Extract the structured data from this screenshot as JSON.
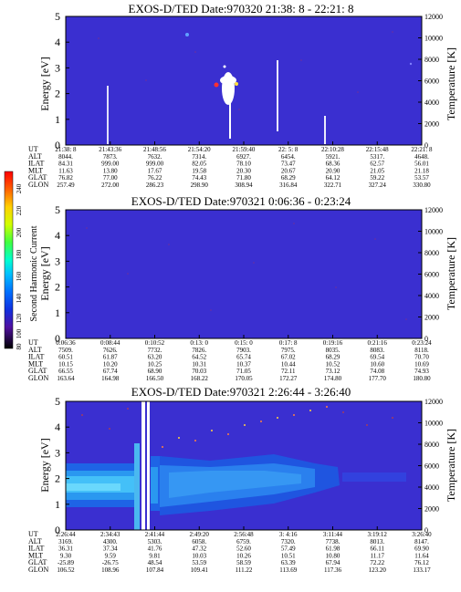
{
  "colorbar": {
    "label": "Second Harmonic Current",
    "ticks": [
      "240",
      "220",
      "200",
      "180",
      "160",
      "140",
      "120",
      "100",
      "80"
    ]
  },
  "chart_data": [
    {
      "type": "heatmap",
      "title": "EXOS-D/TED    Date:970320  21:38: 8 - 22:21: 8",
      "ylabel": "Energy [eV]",
      "y2label": "Temperature [K]",
      "ylim": [
        0,
        5
      ],
      "y2lim": [
        0,
        12000
      ],
      "yticks": [
        "0",
        "1",
        "2",
        "3",
        "4",
        "5"
      ],
      "y2ticks": [
        "0",
        "2000",
        "4000",
        "6000",
        "8000",
        "10000",
        "12000"
      ],
      "row_labels": [
        "UT",
        "ALT",
        "ILAT",
        "MLT",
        "GLAT",
        "GLON"
      ],
      "columns": [
        [
          "21:38: 8",
          "8044.",
          "84.31",
          "11.63",
          "76.82",
          "257.49"
        ],
        [
          "21:43:36",
          "7873.",
          "999.00",
          "13.80",
          "77.00",
          "272.00"
        ],
        [
          "21:48:56",
          "7632.",
          "999.00",
          "17.67",
          "76.22",
          "286.23"
        ],
        [
          "21:54:20",
          "7314.",
          "82.05",
          "19.58",
          "74.43",
          "298.90"
        ],
        [
          "21:59:40",
          "6927.",
          "78.10",
          "20.30",
          "71.80",
          "308.94"
        ],
        [
          "22: 5: 8",
          "6454.",
          "73.47",
          "20.67",
          "68.29",
          "316.84"
        ],
        [
          "22:10:28",
          "5921.",
          "68.36",
          "20.90",
          "64.12",
          "322.71"
        ],
        [
          "22:15:48",
          "5317.",
          "62.57",
          "21.05",
          "59.22",
          "327.24"
        ],
        [
          "22:21: 8",
          "4648.",
          "56.01",
          "21.18",
          "53.57",
          "330.80"
        ]
      ]
    },
    {
      "type": "heatmap",
      "title": "EXOS-D/TED    Date:970321  0:06:36 - 0:23:24",
      "ylabel": "Energy [eV]",
      "y2label": "Temperature [K]",
      "ylim": [
        0,
        5
      ],
      "y2lim": [
        0,
        12000
      ],
      "yticks": [
        "0",
        "1",
        "2",
        "3",
        "4",
        "5"
      ],
      "y2ticks": [
        "0",
        "2000",
        "4000",
        "6000",
        "8000",
        "10000",
        "12000"
      ],
      "row_labels": [
        "UT",
        "ALT",
        "ILAT",
        "MLT",
        "GLAT",
        "GLON"
      ],
      "columns": [
        [
          "0:06:36",
          "7509.",
          "60.51",
          "10.15",
          "66.55",
          "163.64"
        ],
        [
          "0:08:44",
          "7626.",
          "61.87",
          "10.20",
          "67.74",
          "164.98"
        ],
        [
          "0:10:52",
          "7732.",
          "63.20",
          "10.25",
          "68.90",
          "166.50"
        ],
        [
          "0:13: 0",
          "7826.",
          "64.52",
          "10.31",
          "70.03",
          "168.22"
        ],
        [
          "0:15: 0",
          "7903.",
          "65.74",
          "10.37",
          "71.05",
          "170.05"
        ],
        [
          "0:17: 8",
          "7975.",
          "67.02",
          "10.44",
          "72.11",
          "172.27"
        ],
        [
          "0:19:16",
          "8035.",
          "68.29",
          "10.52",
          "73.12",
          "174.80"
        ],
        [
          "0:21:16",
          "8083.",
          "69.54",
          "10.60",
          "74.08",
          "177.70"
        ],
        [
          "0:23:24",
          "8118.",
          "70.70",
          "10.69",
          "74.93",
          "180.80"
        ]
      ]
    },
    {
      "type": "heatmap",
      "title": "EXOS-D/TED    Date:970321  2:26:44 - 3:26:40",
      "ylabel": "Energy [eV]",
      "y2label": "Temperature [K]",
      "ylim": [
        0,
        5
      ],
      "y2lim": [
        0,
        12000
      ],
      "yticks": [
        "0",
        "1",
        "2",
        "3",
        "4",
        "5"
      ],
      "y2ticks": [
        "0",
        "2000",
        "4000",
        "6000",
        "8000",
        "10000",
        "12000"
      ],
      "row_labels": [
        "UT",
        "ALT",
        "ILAT",
        "MLT",
        "GLAT",
        "GLON"
      ],
      "columns": [
        [
          "2:26:44",
          "3169.",
          "36.31",
          "9.30",
          "-25.89",
          "106.52"
        ],
        [
          "2:34:43",
          "4300.",
          "37.34",
          "9.59",
          "-26.75",
          "108.96"
        ],
        [
          "2:41:44",
          "5303.",
          "41.76",
          "9.81",
          "48.54",
          "107.84"
        ],
        [
          "2:49:20",
          "6058.",
          "47.32",
          "10.03",
          "53.59",
          "109.41"
        ],
        [
          "2:56:48",
          "6759.",
          "52.60",
          "10.26",
          "58.59",
          "111.22"
        ],
        [
          "3: 4:16",
          "7320.",
          "57.49",
          "10.51",
          "63.39",
          "113.69"
        ],
        [
          "3:11:44",
          "7738.",
          "61.98",
          "10.80",
          "67.94",
          "117.36"
        ],
        [
          "3:19:12",
          "8013.",
          "66.11",
          "11.17",
          "72.22",
          "123.20"
        ],
        [
          "3:26:40",
          "8147.",
          "69.90",
          "11.64",
          "76.12",
          "133.17"
        ]
      ]
    }
  ]
}
